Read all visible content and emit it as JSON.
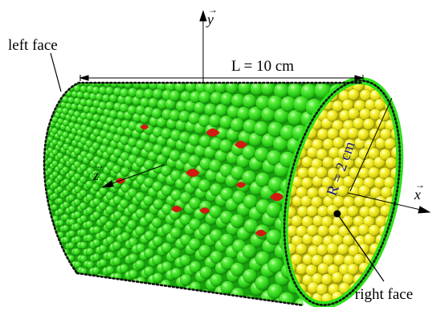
{
  "labels": {
    "left_face": "left face",
    "right_face": "right face",
    "length": "L = 10 cm",
    "radius": "R = 2 cm"
  },
  "axes": {
    "x": "x",
    "y": "y",
    "z": "z"
  },
  "colors": {
    "shell": "#2ee01c",
    "shell_dark": "#1a9e10",
    "interior": "#f2ee16",
    "interior_dark": "#b5a80c",
    "void": "#d11a12",
    "outline": "#111111",
    "radius_text": "#1c1a8c"
  }
}
